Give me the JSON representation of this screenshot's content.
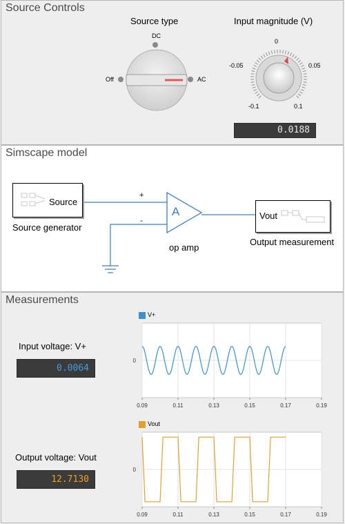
{
  "source_controls": {
    "title": "Source Controls",
    "source_type": {
      "label": "Source type",
      "options": [
        "DC",
        "Off",
        "AC"
      ],
      "selected": "AC"
    },
    "input_magnitude": {
      "label": "Input magnitude (V)",
      "ticks": [
        "0",
        "-0.05",
        "0.05",
        "-0.1",
        "0.1"
      ],
      "value_display": "0.0188"
    }
  },
  "model": {
    "title": "Simscape model",
    "source_block": {
      "label": "Source",
      "caption": "Source generator"
    },
    "opamp_block": {
      "symbol": "A",
      "caption": "op amp",
      "plus": "+",
      "minus": "-"
    },
    "vout_block": {
      "label": "Vout",
      "caption": "Output measurement"
    }
  },
  "measurements": {
    "title": "Measurements",
    "input": {
      "label": "Input voltage: V+",
      "value": "0.0064",
      "color": "#3d9fe0"
    },
    "output": {
      "label": "Output voltage: Vout",
      "value": "12.7130",
      "color": "#f0a020"
    }
  },
  "chart_data": [
    {
      "type": "line",
      "series": [
        {
          "name": "V+",
          "color": "#3d8fd0"
        }
      ],
      "x_ticks": [
        "0.09",
        "0.11",
        "0.13",
        "0.15",
        "0.17",
        "0.19"
      ],
      "y_ticks": [
        "0"
      ],
      "xlim": [
        0.09,
        0.19
      ],
      "x_range": [
        0.09,
        0.17
      ],
      "amplitude": 0.0188,
      "ylim": [
        -0.05,
        0.05
      ],
      "frequency": 100,
      "grid": true,
      "legend": "top-left"
    },
    {
      "type": "line",
      "series": [
        {
          "name": "Vout",
          "color": "#e0a030"
        }
      ],
      "x_ticks": [
        "0.09",
        "0.11",
        "0.13",
        "0.15",
        "0.17",
        "0.19"
      ],
      "y_ticks": [
        "0"
      ],
      "xlim": [
        0.09,
        0.19
      ],
      "x_range": [
        0.09,
        0.17
      ],
      "ylim": [
        -15,
        15
      ],
      "high": 13,
      "low": -13,
      "frequency": 50,
      "grid": true,
      "legend": "top-left"
    }
  ]
}
